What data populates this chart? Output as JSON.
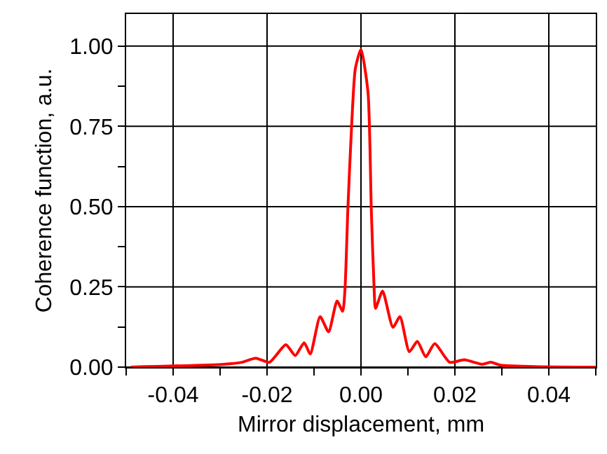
{
  "chart_data": {
    "type": "line",
    "xlabel": "Mirror displacement, mm",
    "ylabel": "Coherence function, a.u.",
    "x": [
      -0.049,
      -0.0293,
      -0.0254,
      -0.0224,
      -0.0195,
      -0.016,
      -0.014,
      -0.0121,
      -0.0108,
      -0.0087,
      -0.0069,
      -0.0051,
      -0.0039,
      -0.0034,
      -0.0028,
      -0.002,
      -0.0012,
      0,
      0.0015,
      0.0022,
      0.0028,
      0.0031,
      0.0046,
      0.0068,
      0.0083,
      0.0103,
      0.012,
      0.0138,
      0.0157,
      0.0189,
      0.022,
      0.0258,
      0.0277,
      0.0297,
      0.0499
    ],
    "series": [
      {
        "color": "#ff0000",
        "values": [
          0,
          0.009,
          0.015,
          0.028,
          0.015,
          0.07,
          0.036,
          0.076,
          0.041,
          0.157,
          0.11,
          0.206,
          0.174,
          0.244,
          0.49,
          0.75,
          0.93,
          0.99,
          0.855,
          0.49,
          0.244,
          0.183,
          0.237,
          0.124,
          0.157,
          0.048,
          0.08,
          0.032,
          0.073,
          0.015,
          0.023,
          0.009,
          0.015,
          0.006,
          0
        ]
      }
    ],
    "xlim": [
      -0.05,
      0.05
    ],
    "xticks": [
      {
        "value": -0.05,
        "label": null
      },
      -0.04,
      {
        "value": -0.03,
        "label": null
      },
      -0.02,
      {
        "value": -0.01,
        "label": null
      },
      {
        "value": 0,
        "label": "0.00"
      },
      {
        "value": 0.01,
        "label": null
      },
      0.02,
      {
        "value": 0.03,
        "label": null
      },
      0.04,
      {
        "value": 0.05,
        "label": null
      }
    ],
    "ylim": [
      0,
      1.1
    ],
    "yticks": [
      {
        "value": 0,
        "label": "0.00"
      },
      {
        "value": 0.125,
        "label": null
      },
      0.25,
      {
        "value": 0.375,
        "label": null
      },
      {
        "value": 0.5,
        "label": "0.50"
      },
      {
        "value": 0.625,
        "label": null
      },
      0.75,
      {
        "value": 0.875,
        "label": null
      },
      {
        "value": 1,
        "label": "1.00"
      }
    ],
    "grid": true,
    "line_style": "solid",
    "marker": "none"
  }
}
